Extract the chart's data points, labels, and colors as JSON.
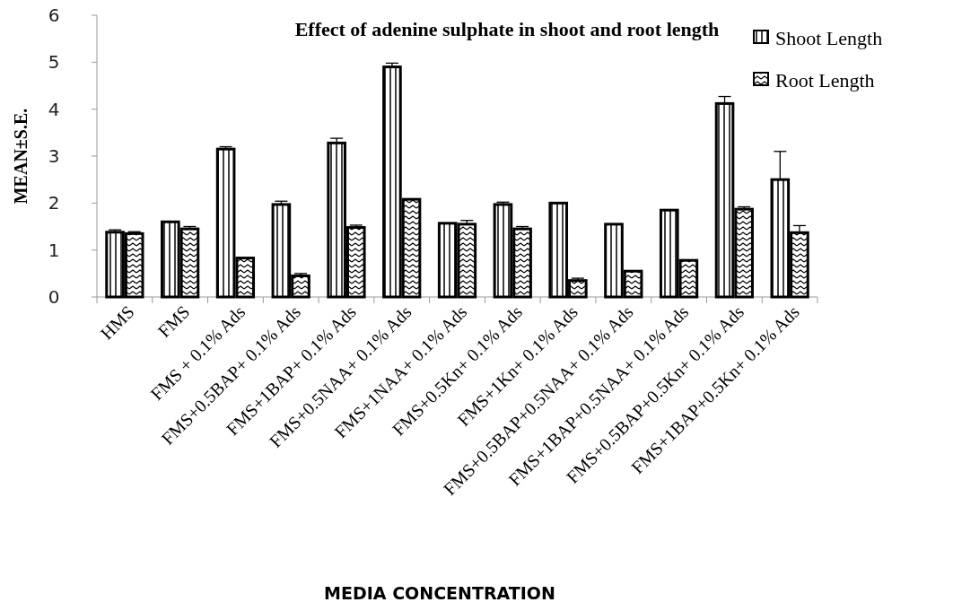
{
  "chart_data": {
    "type": "bar",
    "title": "Effect of adenine sulphate in shoot and root length",
    "xlabel": "MEDIA CONCENTRATION",
    "ylabel": "MEAN±S.E.",
    "categories": [
      "HMS",
      "FMS",
      "FMS + 0.1% Ads",
      "FMS+0.5BAP+ 0.1% Ads",
      "FMS+1BAP+ 0.1% Ads",
      "FMS+0.5NAA+ 0.1% Ads",
      "FMS+1NAA+ 0.1% Ads",
      "FMS+0.5Kn+ 0.1% Ads",
      "FMS+1Kn+ 0.1% Ads",
      "FMS+0.5BAP+0.5NAA+ 0.1% Ads",
      "FMS+1BAP+0.5NAA+ 0.1% Ads",
      "FMS+0.5BAP+0.5Kn+ 0.1% Ads",
      "FMS+1BAP+0.5Kn+ 0.1% Ads"
    ],
    "series": [
      {
        "name": "Shoot Length",
        "color": "#000000",
        "values": [
          1.38,
          1.6,
          3.15,
          1.97,
          3.28,
          4.9,
          1.57,
          1.97,
          2.0,
          1.55,
          1.85,
          4.12,
          2.5
        ],
        "errors": [
          0.05,
          null,
          0.05,
          0.07,
          0.1,
          0.08,
          null,
          0.05,
          null,
          null,
          null,
          0.15,
          0.6
        ]
      },
      {
        "name": "Root Length",
        "color": "#000000",
        "values": [
          1.35,
          1.45,
          0.83,
          0.45,
          1.48,
          2.08,
          1.55,
          1.45,
          0.35,
          0.55,
          0.78,
          1.87,
          1.37
        ],
        "errors": [
          0.04,
          0.05,
          null,
          0.05,
          0.05,
          null,
          0.08,
          0.05,
          0.05,
          null,
          null,
          0.05,
          0.15
        ]
      }
    ],
    "ylim": [
      0,
      6
    ],
    "yticks": [
      0,
      1,
      2,
      3,
      4,
      5,
      6
    ],
    "legend": "top right"
  }
}
